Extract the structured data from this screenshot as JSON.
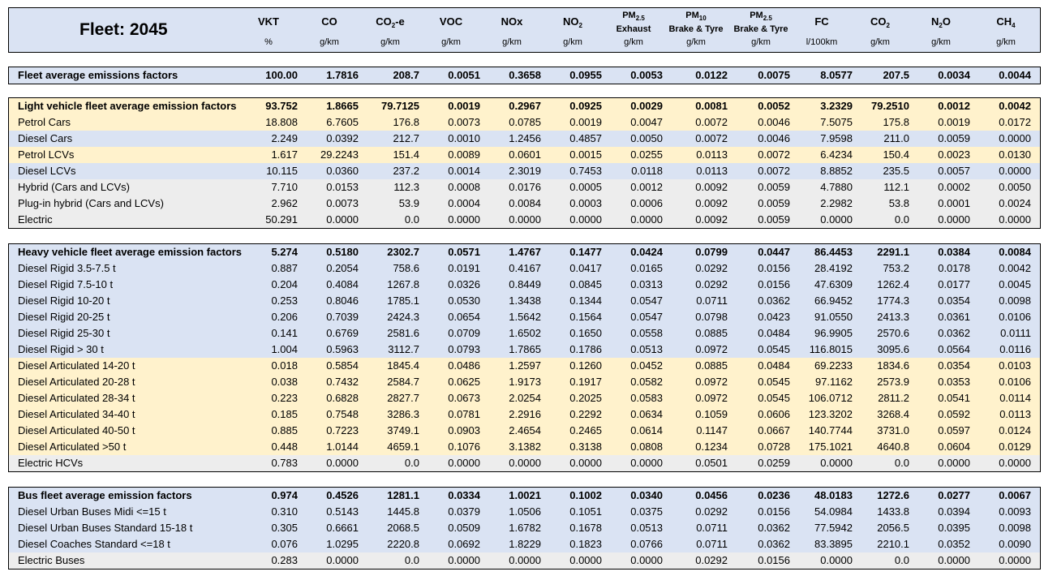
{
  "title": "Fleet: 2045",
  "columns": [
    {
      "main": "VKT",
      "sub": "",
      "line2": "",
      "unit": "%"
    },
    {
      "main": "CO",
      "sub": "",
      "line2": "",
      "unit": "g/km"
    },
    {
      "main": "CO",
      "sub": "2",
      "suffix": "-e",
      "line2": "",
      "unit": "g/km"
    },
    {
      "main": "VOC",
      "sub": "",
      "line2": "",
      "unit": "g/km"
    },
    {
      "main": "NOx",
      "sub": "",
      "line2": "",
      "unit": "g/km"
    },
    {
      "main": "NO",
      "sub": "2",
      "line2": "",
      "unit": "g/km"
    },
    {
      "main": "PM",
      "sub": "2.5",
      "line2": "Exhaust",
      "unit": "g/km"
    },
    {
      "main": "PM",
      "sub": "10",
      "line2": "Brake & Tyre",
      "unit": "g/km"
    },
    {
      "main": "PM",
      "sub": "2.5",
      "line2": "Brake & Tyre",
      "unit": "g/km"
    },
    {
      "main": "FC",
      "sub": "",
      "line2": "",
      "unit": "l/100km"
    },
    {
      "main": "CO",
      "sub": "2",
      "line2": "",
      "unit": "g/km"
    },
    {
      "main": "N",
      "sub": "2",
      "suffix": "O",
      "line2": "",
      "unit": "g/km"
    },
    {
      "main": "CH",
      "sub": "4",
      "line2": "",
      "unit": "g/km"
    }
  ],
  "sections": [
    {
      "rows": [
        {
          "label": "Fleet average emissions factors",
          "bold": true,
          "bg": "blue",
          "values": [
            "100.00",
            "1.7816",
            "208.7",
            "0.0051",
            "0.3658",
            "0.0955",
            "0.0053",
            "0.0122",
            "0.0075",
            "8.0577",
            "207.5",
            "0.0034",
            "0.0044"
          ]
        }
      ]
    },
    {
      "rows": [
        {
          "label": "Light vehicle fleet average emission factors",
          "bold": true,
          "bg": "yellow",
          "values": [
            "93.752",
            "1.8665",
            "79.7125",
            "0.0019",
            "0.2967",
            "0.0925",
            "0.0029",
            "0.0081",
            "0.0052",
            "3.2329",
            "79.2510",
            "0.0012",
            "0.0042"
          ]
        },
        {
          "label": "Petrol Cars",
          "bold": false,
          "bg": "yellow",
          "values": [
            "18.808",
            "6.7605",
            "176.8",
            "0.0073",
            "0.0785",
            "0.0019",
            "0.0047",
            "0.0072",
            "0.0046",
            "7.5075",
            "175.8",
            "0.0019",
            "0.0172"
          ]
        },
        {
          "label": "Diesel Cars",
          "bold": false,
          "bg": "blue",
          "values": [
            "2.249",
            "0.0392",
            "212.7",
            "0.0010",
            "1.2456",
            "0.4857",
            "0.0050",
            "0.0072",
            "0.0046",
            "7.9598",
            "211.0",
            "0.0059",
            "0.0000"
          ]
        },
        {
          "label": "Petrol LCVs",
          "bold": false,
          "bg": "yellow",
          "values": [
            "1.617",
            "29.2243",
            "151.4",
            "0.0089",
            "0.0601",
            "0.0015",
            "0.0255",
            "0.0113",
            "0.0072",
            "6.4234",
            "150.4",
            "0.0023",
            "0.0130"
          ]
        },
        {
          "label": "Diesel LCVs",
          "bold": false,
          "bg": "blue",
          "values": [
            "10.115",
            "0.0360",
            "237.2",
            "0.0014",
            "2.3019",
            "0.7453",
            "0.0118",
            "0.0113",
            "0.0072",
            "8.8852",
            "235.5",
            "0.0057",
            "0.0000"
          ]
        },
        {
          "label": "Hybrid (Cars and LCVs)",
          "bold": false,
          "bg": "gray",
          "values": [
            "7.710",
            "0.0153",
            "112.3",
            "0.0008",
            "0.0176",
            "0.0005",
            "0.0012",
            "0.0092",
            "0.0059",
            "4.7880",
            "112.1",
            "0.0002",
            "0.0050"
          ]
        },
        {
          "label": "Plug-in hybrid (Cars and LCVs)",
          "bold": false,
          "bg": "gray",
          "values": [
            "2.962",
            "0.0073",
            "53.9",
            "0.0004",
            "0.0084",
            "0.0003",
            "0.0006",
            "0.0092",
            "0.0059",
            "2.2982",
            "53.8",
            "0.0001",
            "0.0024"
          ]
        },
        {
          "label": "Electric",
          "bold": false,
          "bg": "gray",
          "values": [
            "50.291",
            "0.0000",
            "0.0",
            "0.0000",
            "0.0000",
            "0.0000",
            "0.0000",
            "0.0092",
            "0.0059",
            "0.0000",
            "0.0",
            "0.0000",
            "0.0000"
          ]
        }
      ]
    },
    {
      "rows": [
        {
          "label": "Heavy vehicle fleet average emission factors",
          "bold": true,
          "bg": "blue",
          "values": [
            "5.274",
            "0.5180",
            "2302.7",
            "0.0571",
            "1.4767",
            "0.1477",
            "0.0424",
            "0.0799",
            "0.0447",
            "86.4453",
            "2291.1",
            "0.0384",
            "0.0084"
          ]
        },
        {
          "label": "Diesel Rigid  3.5-7.5 t",
          "bold": false,
          "bg": "blue",
          "values": [
            "0.887",
            "0.2054",
            "758.6",
            "0.0191",
            "0.4167",
            "0.0417",
            "0.0165",
            "0.0292",
            "0.0156",
            "28.4192",
            "753.2",
            "0.0178",
            "0.0042"
          ]
        },
        {
          "label": "Diesel Rigid  7.5-10 t",
          "bold": false,
          "bg": "blue",
          "values": [
            "0.204",
            "0.4084",
            "1267.8",
            "0.0326",
            "0.8449",
            "0.0845",
            "0.0313",
            "0.0292",
            "0.0156",
            "47.6309",
            "1262.4",
            "0.0177",
            "0.0045"
          ]
        },
        {
          "label": "Diesel Rigid  10-20 t",
          "bold": false,
          "bg": "blue",
          "values": [
            "0.253",
            "0.8046",
            "1785.1",
            "0.0530",
            "1.3438",
            "0.1344",
            "0.0547",
            "0.0711",
            "0.0362",
            "66.9452",
            "1774.3",
            "0.0354",
            "0.0098"
          ]
        },
        {
          "label": "Diesel Rigid  20-25 t",
          "bold": false,
          "bg": "blue",
          "values": [
            "0.206",
            "0.7039",
            "2424.3",
            "0.0654",
            "1.5642",
            "0.1564",
            "0.0547",
            "0.0798",
            "0.0423",
            "91.0550",
            "2413.3",
            "0.0361",
            "0.0106"
          ]
        },
        {
          "label": "Diesel Rigid  25-30 t",
          "bold": false,
          "bg": "blue",
          "values": [
            "0.141",
            "0.6769",
            "2581.6",
            "0.0709",
            "1.6502",
            "0.1650",
            "0.0558",
            "0.0885",
            "0.0484",
            "96.9905",
            "2570.6",
            "0.0362",
            "0.0111"
          ]
        },
        {
          "label": "Diesel Rigid  > 30 t",
          "bold": false,
          "bg": "blue",
          "values": [
            "1.004",
            "0.5963",
            "3112.7",
            "0.0793",
            "1.7865",
            "0.1786",
            "0.0513",
            "0.0972",
            "0.0545",
            "116.8015",
            "3095.6",
            "0.0564",
            "0.0116"
          ]
        },
        {
          "label": "Diesel Articulated 14-20 t",
          "bold": false,
          "bg": "yellow",
          "values": [
            "0.018",
            "0.5854",
            "1845.4",
            "0.0486",
            "1.2597",
            "0.1260",
            "0.0452",
            "0.0885",
            "0.0484",
            "69.2233",
            "1834.6",
            "0.0354",
            "0.0103"
          ]
        },
        {
          "label": "Diesel Articulated 20-28 t",
          "bold": false,
          "bg": "yellow",
          "values": [
            "0.038",
            "0.7432",
            "2584.7",
            "0.0625",
            "1.9173",
            "0.1917",
            "0.0582",
            "0.0972",
            "0.0545",
            "97.1162",
            "2573.9",
            "0.0353",
            "0.0106"
          ]
        },
        {
          "label": "Diesel Articulated 28-34 t",
          "bold": false,
          "bg": "yellow",
          "values": [
            "0.223",
            "0.6828",
            "2827.7",
            "0.0673",
            "2.0254",
            "0.2025",
            "0.0583",
            "0.0972",
            "0.0545",
            "106.0712",
            "2811.2",
            "0.0541",
            "0.0114"
          ]
        },
        {
          "label": "Diesel Articulated 34-40 t",
          "bold": false,
          "bg": "yellow",
          "values": [
            "0.185",
            "0.7548",
            "3286.3",
            "0.0781",
            "2.2916",
            "0.2292",
            "0.0634",
            "0.1059",
            "0.0606",
            "123.3202",
            "3268.4",
            "0.0592",
            "0.0113"
          ]
        },
        {
          "label": "Diesel Articulated 40-50 t",
          "bold": false,
          "bg": "yellow",
          "values": [
            "0.885",
            "0.7223",
            "3749.1",
            "0.0903",
            "2.4654",
            "0.2465",
            "0.0614",
            "0.1147",
            "0.0667",
            "140.7744",
            "3731.0",
            "0.0597",
            "0.0124"
          ]
        },
        {
          "label": "Diesel Articulated >50 t",
          "bold": false,
          "bg": "yellow",
          "values": [
            "0.448",
            "1.0144",
            "4659.1",
            "0.1076",
            "3.1382",
            "0.3138",
            "0.0808",
            "0.1234",
            "0.0728",
            "175.1021",
            "4640.8",
            "0.0604",
            "0.0129"
          ]
        },
        {
          "label": "Electric HCVs",
          "bold": false,
          "bg": "gray",
          "values": [
            "0.783",
            "0.0000",
            "0.0",
            "0.0000",
            "0.0000",
            "0.0000",
            "0.0000",
            "0.0501",
            "0.0259",
            "0.0000",
            "0.0",
            "0.0000",
            "0.0000"
          ]
        }
      ]
    },
    {
      "rows": [
        {
          "label": "Bus fleet average emission factors",
          "bold": true,
          "bg": "blue",
          "values": [
            "0.974",
            "0.4526",
            "1281.1",
            "0.0334",
            "1.0021",
            "0.1002",
            "0.0340",
            "0.0456",
            "0.0236",
            "48.0183",
            "1272.6",
            "0.0277",
            "0.0067"
          ]
        },
        {
          "label": "Diesel Urban Buses Midi  <=15 t",
          "bold": false,
          "bg": "blue",
          "values": [
            "0.310",
            "0.5143",
            "1445.8",
            "0.0379",
            "1.0506",
            "0.1051",
            "0.0375",
            "0.0292",
            "0.0156",
            "54.0984",
            "1433.8",
            "0.0394",
            "0.0093"
          ]
        },
        {
          "label": "Diesel Urban Buses Standard  15-18 t",
          "bold": false,
          "bg": "blue",
          "values": [
            "0.305",
            "0.6661",
            "2068.5",
            "0.0509",
            "1.6782",
            "0.1678",
            "0.0513",
            "0.0711",
            "0.0362",
            "77.5942",
            "2056.5",
            "0.0395",
            "0.0098"
          ]
        },
        {
          "label": "Diesel Coaches Standard  <=18 t",
          "bold": false,
          "bg": "blue",
          "values": [
            "0.076",
            "1.0295",
            "2220.8",
            "0.0692",
            "1.8229",
            "0.1823",
            "0.0766",
            "0.0711",
            "0.0362",
            "83.3895",
            "2210.1",
            "0.0352",
            "0.0090"
          ]
        },
        {
          "label": "Electric Buses",
          "bold": false,
          "bg": "gray",
          "values": [
            "0.283",
            "0.0000",
            "0.0",
            "0.0000",
            "0.0000",
            "0.0000",
            "0.0000",
            "0.0292",
            "0.0156",
            "0.0000",
            "0.0",
            "0.0000",
            "0.0000"
          ]
        }
      ]
    }
  ]
}
